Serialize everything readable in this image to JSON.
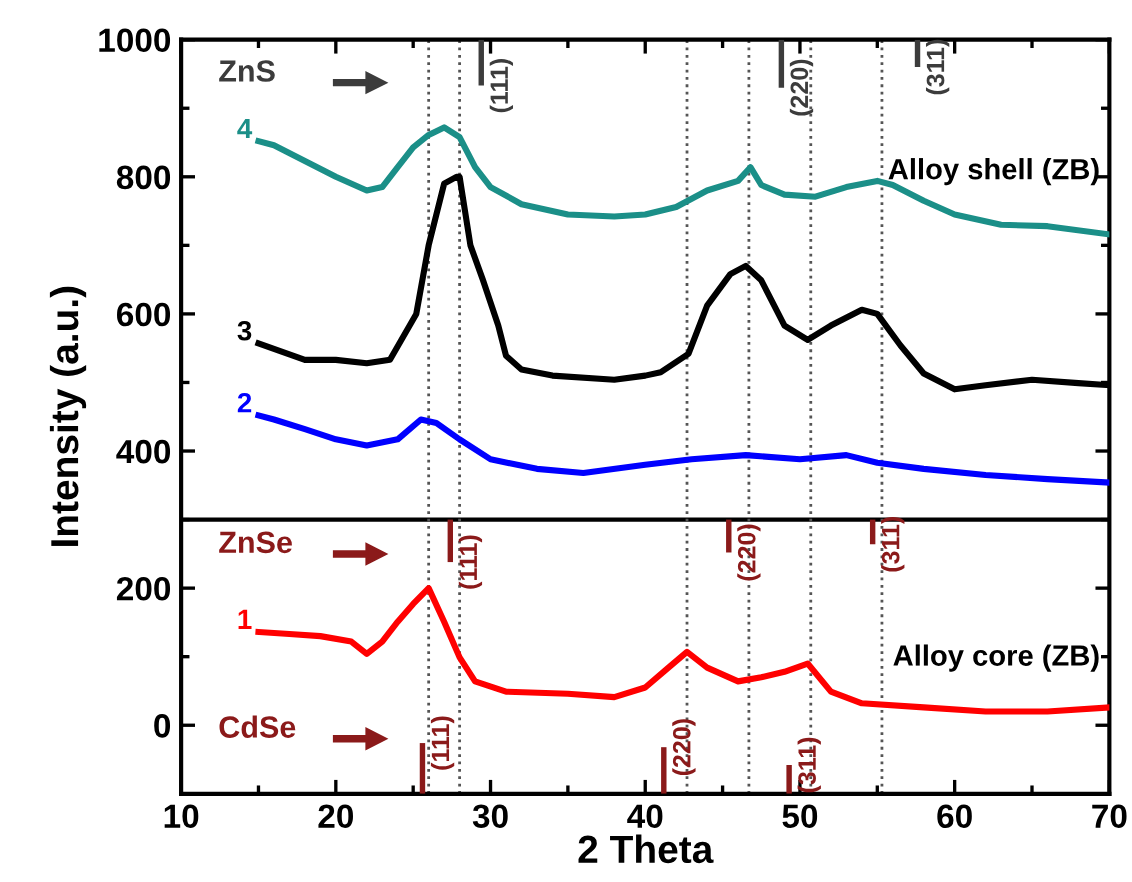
{
  "chart_data": {
    "type": "line",
    "xlabel": "2 Theta",
    "ylabel": "Intensity (a.u.)",
    "xlim": [
      10,
      70
    ],
    "xticks": [
      10,
      20,
      30,
      40,
      50,
      60,
      70
    ],
    "ylim": [
      -100,
      1000
    ],
    "yticks": [
      0,
      200,
      400,
      600,
      800,
      1000
    ],
    "grid": false,
    "legend": "left",
    "series": [
      {
        "name": "4",
        "color": "#1b8f88",
        "x": [
          15,
          16,
          18,
          20,
          22,
          23,
          24,
          25,
          26,
          27,
          28,
          29,
          30,
          32,
          35,
          38,
          40,
          42,
          44,
          46,
          46.8,
          47.5,
          49,
          51,
          53,
          55,
          56,
          58,
          60,
          63,
          66,
          70
        ],
        "values": [
          852,
          846,
          823,
          800,
          780,
          785,
          814,
          843,
          861,
          872,
          858,
          814,
          785,
          760,
          745,
          742,
          745,
          756,
          780,
          794,
          814,
          788,
          774,
          771,
          785,
          794,
          788,
          765,
          745,
          730,
          728,
          716
        ]
      },
      {
        "name": "3",
        "color": "#000000",
        "x": [
          15,
          18,
          20,
          22,
          23.5,
          25.2,
          26,
          27,
          27.8,
          28,
          28.7,
          29.5,
          30.5,
          31,
          32,
          34,
          38,
          40,
          41,
          42.8,
          44,
          45.5,
          46.5,
          47.5,
          49,
          50.5,
          52,
          54,
          55,
          56.5,
          58,
          60,
          62,
          65,
          68,
          70
        ],
        "values": [
          557,
          533,
          533,
          528,
          533,
          600,
          700,
          790,
          800,
          800,
          700,
          650,
          583,
          539,
          519,
          510,
          504,
          510,
          515,
          542,
          612,
          658,
          670,
          649,
          583,
          562,
          583,
          606,
          600,
          554,
          513,
          490,
          496,
          504,
          499,
          496
        ]
      },
      {
        "name": "2",
        "color": "#0000ff",
        "x": [
          15,
          16,
          18,
          20,
          22,
          24,
          25.5,
          26.5,
          28,
          30,
          33,
          36,
          40,
          43,
          46.5,
          50,
          53,
          55,
          58,
          62,
          66,
          70
        ],
        "values": [
          452,
          446,
          432,
          417,
          408,
          417,
          446,
          441,
          417,
          388,
          374,
          368,
          380,
          388,
          394,
          388,
          394,
          383,
          374,
          365,
          359,
          354
        ]
      },
      {
        "name": "1",
        "color": "#ff0000",
        "x": [
          15,
          17,
          19,
          21,
          22,
          23,
          24,
          25,
          26,
          27,
          28,
          29,
          31,
          35,
          38,
          40,
          41.5,
          42.7,
          44,
          46,
          47.5,
          49,
          50.5,
          52,
          54,
          58,
          62,
          66,
          70
        ],
        "values": [
          136,
          133,
          130,
          122,
          104,
          122,
          151,
          177,
          200,
          151,
          99,
          64,
          49,
          46,
          41,
          55,
          84,
          107,
          84,
          64,
          70,
          78,
          90,
          49,
          32,
          26,
          20,
          20,
          26
        ]
      },
      {
        "name": "ZnS",
        "type": "bar",
        "color": "#3c3c3c",
        "x": [
          29.4,
          48.8,
          57.6
        ],
        "base": [
          1000,
          1000,
          1000
        ],
        "values": [
          -67,
          -70,
          -40
        ]
      },
      {
        "name": "ZnSe",
        "type": "bar",
        "color": "#8b1a1a",
        "x": [
          27.4,
          45.4,
          54.7
        ],
        "base": [
          300,
          300,
          300
        ],
        "values": [
          -62,
          -48,
          -36
        ]
      },
      {
        "name": "CdSe",
        "type": "bar",
        "color": "#8b1a1a",
        "x": [
          25.6,
          41.2,
          49.3
        ],
        "base": [
          -100,
          -100,
          -100
        ],
        "values": [
          74,
          68,
          42
        ]
      }
    ],
    "ref_lines": [
      {
        "axis": "y",
        "value": 300,
        "color": "#000000",
        "line_style": "solid"
      },
      {
        "axis": "x",
        "value": 26,
        "color": "#555555",
        "line_style": "dotted"
      },
      {
        "axis": "x",
        "value": 28,
        "color": "#555555",
        "line_style": "dotted"
      },
      {
        "axis": "x",
        "value": 42.7,
        "color": "#555555",
        "line_style": "dotted"
      },
      {
        "axis": "x",
        "value": 46.7,
        "color": "#555555",
        "line_style": "dotted"
      },
      {
        "axis": "x",
        "value": 50.7,
        "color": "#555555",
        "line_style": "dotted"
      },
      {
        "axis": "x",
        "value": 55.3,
        "color": "#555555",
        "line_style": "dotted"
      }
    ],
    "annotations": [
      "Alloy shell (ZB)",
      "Alloy core (ZB)",
      {
        "text": "(111)",
        "x": 29.4,
        "y": 933
      },
      {
        "text": "(220)",
        "x": 48.8,
        "y": 930
      },
      {
        "text": "(311)",
        "x": 57.6,
        "y": 960
      },
      {
        "text": "(111)",
        "x": 27.4,
        "y": 238
      },
      {
        "text": "(220)",
        "x": 45.4,
        "y": 252
      },
      {
        "text": "(311)",
        "x": 54.7,
        "y": 264
      },
      {
        "text": "(111)",
        "x": 25.6,
        "y": -26
      },
      {
        "text": "(220)",
        "x": 41.2,
        "y": -32
      },
      {
        "text": "(311)",
        "x": 49.3,
        "y": -58
      }
    ]
  }
}
